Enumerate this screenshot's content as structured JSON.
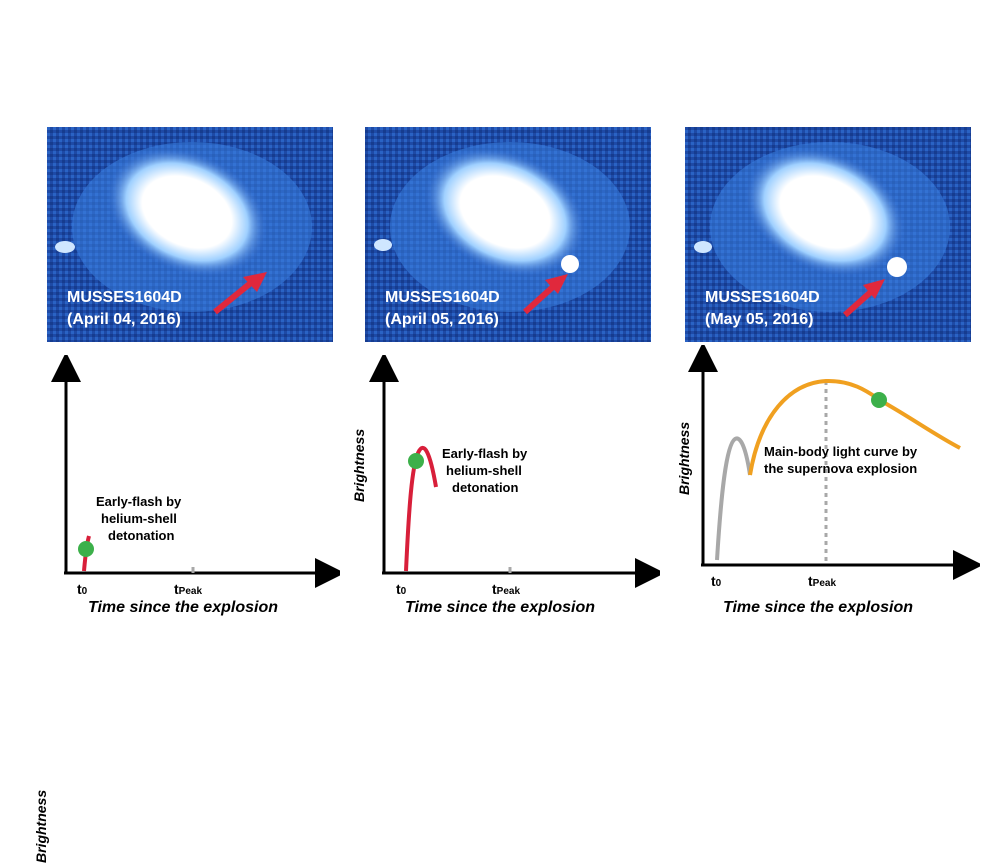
{
  "panels": [
    {
      "object_name": "MUSSES1604D",
      "date": "(April 04, 2016)",
      "y_label": "Brightness",
      "x_label": "Time since the explosion",
      "tick_t0": "t",
      "tick_t0_sub": "0",
      "tick_tpeak": "t",
      "tick_tpeak_sub": "Peak",
      "annotation_lines": [
        "Early-flash by",
        "helium-shell",
        "detonation"
      ]
    },
    {
      "object_name": "MUSSES1604D",
      "date": "(April 05, 2016)",
      "y_label": "Brightness",
      "x_label": "Time since the explosion",
      "tick_t0": "t",
      "tick_t0_sub": "0",
      "tick_tpeak": "t",
      "tick_tpeak_sub": "Peak",
      "annotation_lines": [
        "Early-flash by",
        "helium-shell",
        "detonation"
      ]
    },
    {
      "object_name": "MUSSES1604D",
      "date": "(May 05, 2016)",
      "y_label": "Brightness",
      "x_label": "Time since the explosion",
      "tick_t0": "t",
      "tick_t0_sub": "0",
      "tick_tpeak": "t",
      "tick_tpeak_sub": "Peak",
      "annotation_lines": [
        "Main-body light curve by",
        "the supernova explosion"
      ]
    }
  ],
  "colors": {
    "sky": "#1f4fb0",
    "galaxy": "#ffffff",
    "arrow": "#e0283c",
    "early_flash_curve": "#d81f3a",
    "early_flash_faded": "#a8a8a8",
    "main_curve": "#f0a020",
    "marker": "#3cb04a",
    "peak_line": "#a8a8a8"
  }
}
